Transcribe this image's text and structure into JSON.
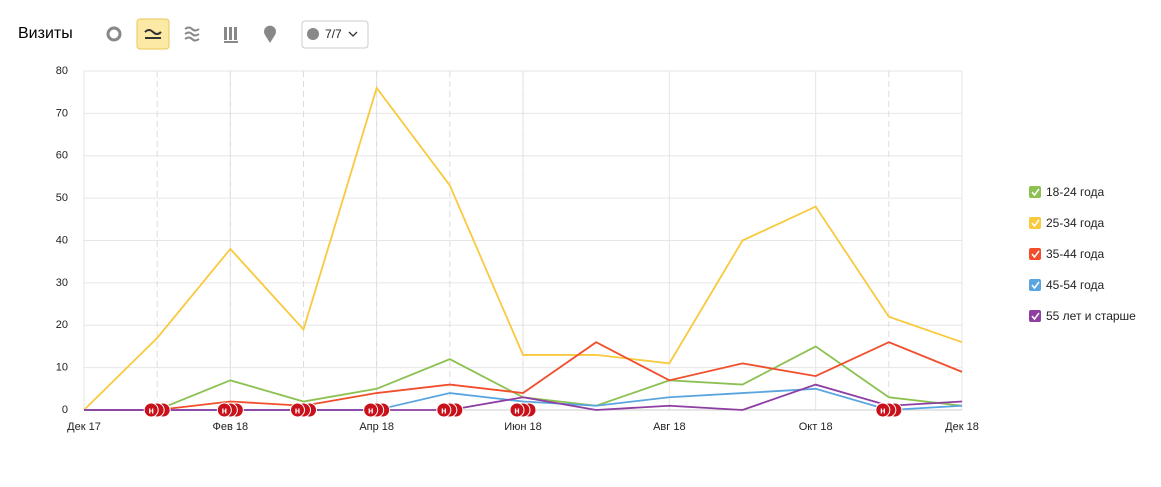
{
  "toolbar": {
    "series_selector": "7/7"
  },
  "chart_data": {
    "type": "line",
    "title": "Визиты",
    "categories": [
      "Дек 17",
      null,
      "Фев 18",
      null,
      "Апр 18",
      null,
      "Июн 18",
      null,
      "Авг 18",
      null,
      "Окт 18",
      null,
      "Дек 18"
    ],
    "series": [
      {
        "name": "18-24 года",
        "color": "#8cc151",
        "values": [
          0,
          0,
          7,
          2,
          5,
          12,
          3,
          1,
          7,
          6,
          15,
          3,
          1
        ]
      },
      {
        "name": "25-34 года",
        "color": "#f9c93e",
        "values": [
          0,
          17,
          38,
          19,
          76,
          53,
          13,
          13,
          11,
          40,
          48,
          22,
          16
        ]
      },
      {
        "name": "35-44 года",
        "color": "#f04e2c",
        "values": [
          0,
          0,
          2,
          1,
          4,
          6,
          4,
          16,
          7,
          11,
          8,
          16,
          9
        ]
      },
      {
        "name": "45-54 года",
        "color": "#5aa5e0",
        "values": [
          0,
          0,
          0,
          0,
          0,
          4,
          2,
          1,
          3,
          4,
          5,
          0,
          1
        ]
      },
      {
        "name": "55 лет и старше",
        "color": "#8e3ea2",
        "values": [
          0,
          0,
          0,
          0,
          0,
          0,
          3,
          0,
          1,
          0,
          6,
          1,
          2
        ]
      }
    ],
    "annotations": [
      {
        "x": 1,
        "label": "н"
      },
      {
        "x": 2,
        "label": "н"
      },
      {
        "x": 3,
        "label": "н"
      },
      {
        "x": 4,
        "label": "н"
      },
      {
        "x": 5,
        "label": "н"
      },
      {
        "x": 6,
        "label": "н"
      },
      {
        "x": 11,
        "label": "н"
      }
    ],
    "ylim": [
      0,
      80
    ],
    "yticks": [
      0,
      10,
      20,
      30,
      40,
      50,
      60,
      70,
      80
    ],
    "grid": true,
    "legend": "right"
  }
}
